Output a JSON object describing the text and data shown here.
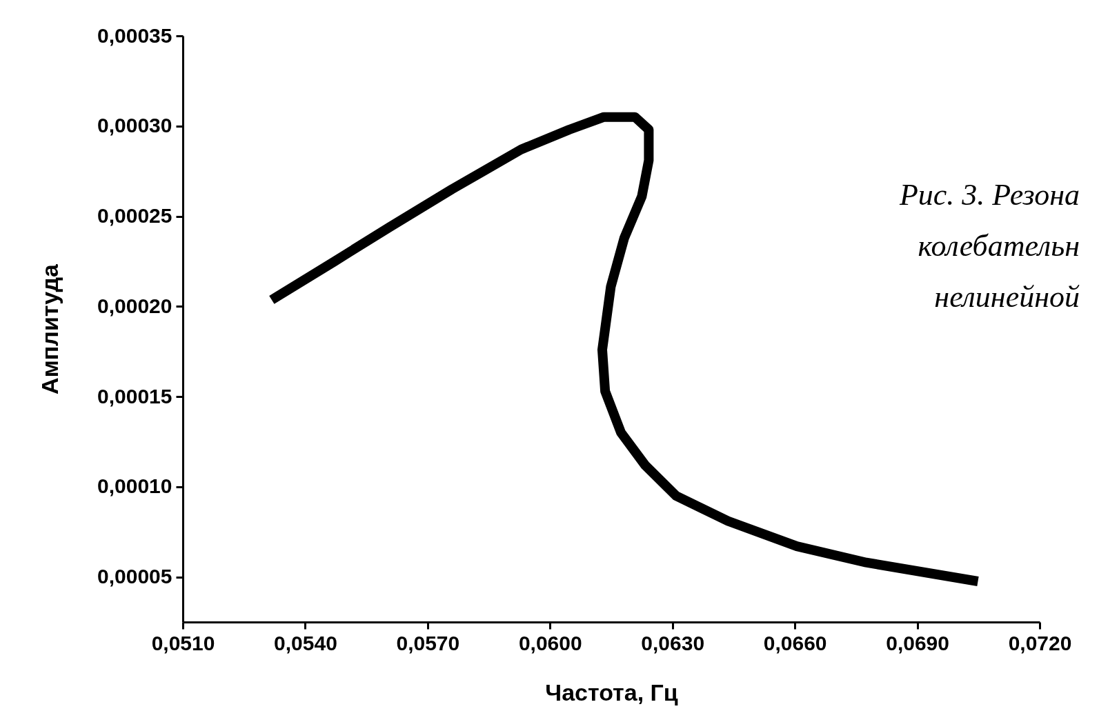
{
  "chart_data": {
    "type": "line",
    "xlabel": "Частота, Гц",
    "ylabel": "Амплитуда",
    "annotations": [
      "Рис. 3. Резона",
      "колебательн",
      "нелинейной"
    ],
    "series": [
      {
        "color": "#000000",
        "x": [
          0.05328,
          0.05472,
          0.05607,
          0.0576,
          0.05929,
          0.06047,
          0.06132,
          0.06208,
          0.06242,
          0.06242,
          0.06225,
          0.06182,
          0.06149,
          0.06128,
          0.06135,
          0.06174,
          0.06233,
          0.06309,
          0.06436,
          0.06605,
          0.06775,
          0.07037
        ],
        "values": [
          0.000205,
          0.000225,
          0.000244,
          0.000265,
          0.000287,
          0.000298,
          0.000305,
          0.000305,
          0.000298,
          0.000281,
          0.000261,
          0.000238,
          0.000211,
          0.000176,
          0.000153,
          0.00013,
          0.000112,
          9.5e-05,
          8.1e-05,
          6.7e-05,
          5.8e-05,
          4.8e-05
        ]
      }
    ],
    "xlim": [
      0.051,
      0.072
    ],
    "xticks": [
      {
        "value": 0.051,
        "label": "0,0510"
      },
      {
        "value": 0.054,
        "label": "0,0540"
      },
      {
        "value": 0.057,
        "label": "0,0570"
      },
      {
        "value": 0.06,
        "label": "0,0600"
      },
      {
        "value": 0.063,
        "label": "0,0630"
      },
      {
        "value": 0.066,
        "label": "0,0660"
      },
      {
        "value": 0.069,
        "label": "0,0690"
      },
      {
        "value": 0.072,
        "label": "0,0720"
      }
    ],
    "ylim": [
      2.5e-05,
      0.00035
    ],
    "yticks": [
      {
        "value": 5e-05,
        "label": "0,00005"
      },
      {
        "value": 0.0001,
        "label": "0,00010"
      },
      {
        "value": 0.00015,
        "label": "0,00015"
      },
      {
        "value": 0.0002,
        "label": "0,00020"
      },
      {
        "value": 0.00025,
        "label": "0,00025"
      },
      {
        "value": 0.0003,
        "label": "0,00030"
      },
      {
        "value": 0.00035,
        "label": "0,00035"
      }
    ],
    "grid": false,
    "line_style": "solid"
  }
}
